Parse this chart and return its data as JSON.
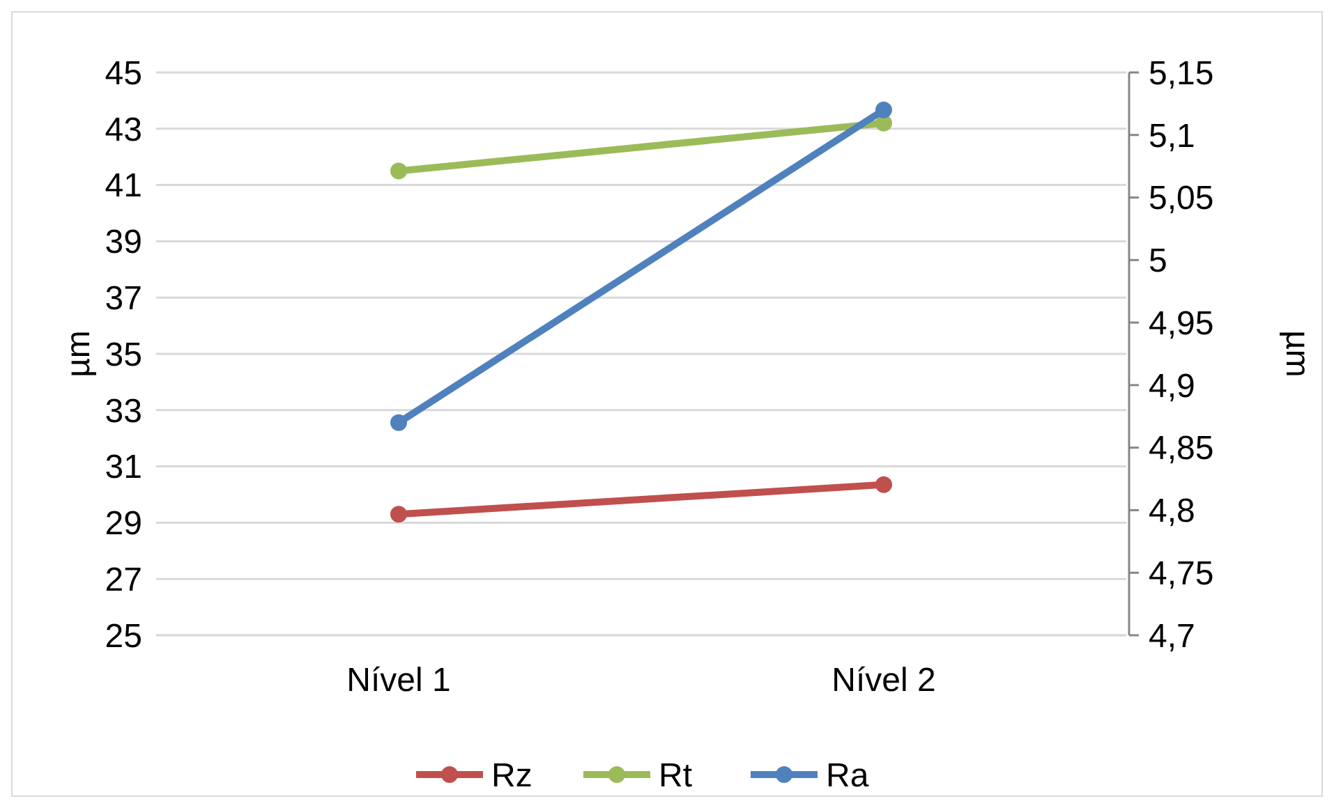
{
  "chart_data": {
    "type": "line",
    "categories": [
      "Nível 1",
      "Nível 2"
    ],
    "ylabel": "µm",
    "y2label": "µm",
    "ylim": [
      25,
      45
    ],
    "yticks": [
      25,
      27,
      29,
      31,
      33,
      35,
      37,
      39,
      41,
      43,
      45
    ],
    "y2lim": [
      4.7,
      5.15
    ],
    "y2ticks": [
      {
        "value": 4.7,
        "label": "4,7"
      },
      {
        "value": 4.75,
        "label": "4,75"
      },
      {
        "value": 4.8,
        "label": "4,8"
      },
      {
        "value": 4.85,
        "label": "4,85"
      },
      {
        "value": 4.9,
        "label": "4,9"
      },
      {
        "value": 4.95,
        "label": "4,95"
      },
      {
        "value": 5,
        "label": "5"
      },
      {
        "value": 5.05,
        "label": "5,05"
      },
      {
        "value": 5.1,
        "label": "5,1"
      },
      {
        "value": 5.15,
        "label": "5,15"
      }
    ],
    "grid": "y",
    "legend": "bottom",
    "marker": "circle",
    "line_style": "solid",
    "series": [
      {
        "name": "Rz",
        "color": "#c0504d",
        "values": [
          29.3,
          30.35
        ]
      },
      {
        "name": "Rt",
        "color": "#9bbb59",
        "values": [
          41.5,
          43.2
        ]
      },
      {
        "name": "Ra",
        "color": "#4f81bd",
        "values": [
          4.87,
          5.12
        ],
        "axis": "y2"
      }
    ]
  }
}
